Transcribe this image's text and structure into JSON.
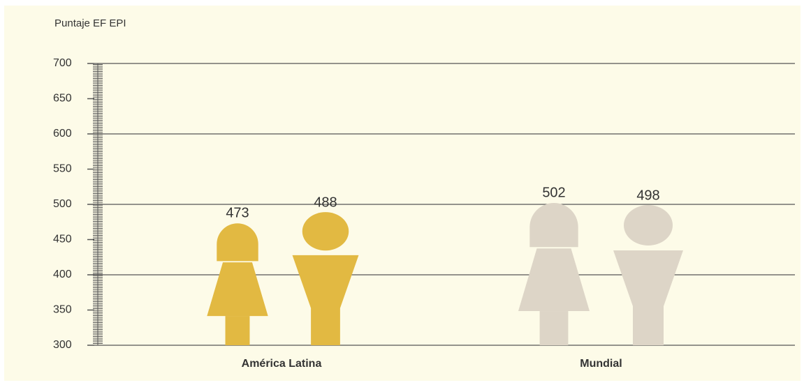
{
  "chart_data": {
    "type": "pictogram",
    "y_label": "Puntaje EF EPI",
    "categories": [
      "América Latina",
      "Mundial"
    ],
    "colors": [
      "#e2b942",
      "#ddd5c7"
    ],
    "series": [
      {
        "icon": "female",
        "values": [
          473,
          502
        ]
      },
      {
        "icon": "male",
        "values": [
          488,
          498
        ]
      }
    ],
    "ylim": [
      300,
      700
    ],
    "yticks": [
      300,
      350,
      400,
      450,
      500,
      550,
      600,
      650,
      700
    ],
    "grid": true
  }
}
